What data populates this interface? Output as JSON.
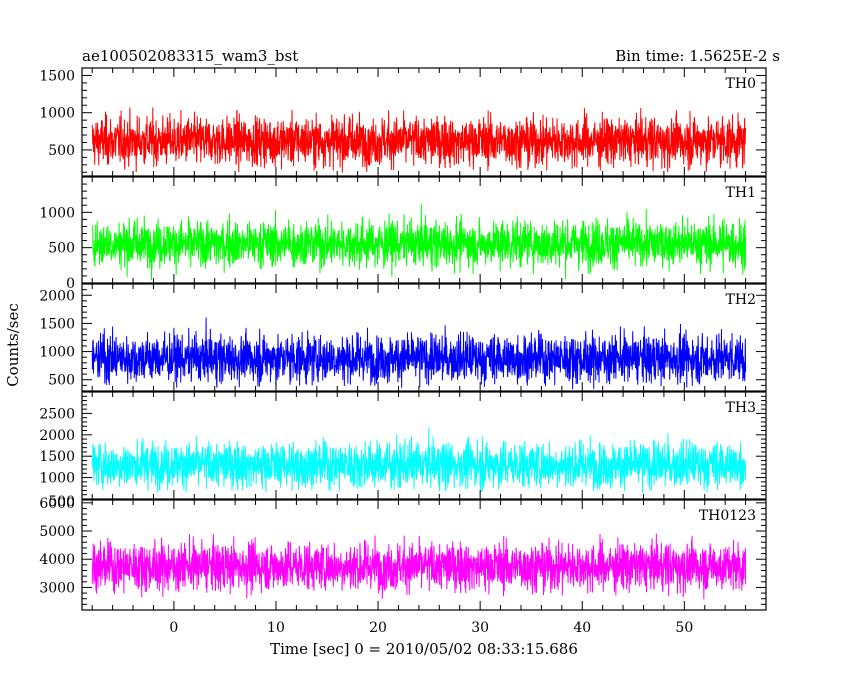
{
  "chart_data": {
    "type": "line",
    "title_left": "ae100502083315_wam3_bst",
    "title_right": "Bin time: 1.5625E-2 s",
    "xlabel": "Time [sec] 0 = 2010/05/02 08:33:15.686",
    "ylabel": "Counts/sec",
    "xlim": [
      -9,
      58
    ],
    "data_xrange": [
      -8,
      56
    ],
    "x_ticks": [
      0,
      10,
      20,
      30,
      40,
      50
    ],
    "x_minor_step": 2,
    "grid": false,
    "panels": [
      {
        "name": "TH0",
        "color": "#ff0000",
        "ylim": [
          150,
          1600
        ],
        "y_ticks": [
          500,
          1000,
          1500
        ],
        "y_minor_step": 100,
        "mean": 620,
        "spread": 230,
        "clip_low": 180,
        "clip_high": 1600
      },
      {
        "name": "TH1",
        "color": "#00ff00",
        "ylim": [
          0,
          1500
        ],
        "y_ticks": [
          0,
          500,
          1000
        ],
        "y_minor_step": 100,
        "mean": 560,
        "spread": 230,
        "clip_low": 40,
        "clip_high": 1500
      },
      {
        "name": "TH2",
        "color": "#0000ff",
        "ylim": [
          300,
          2200
        ],
        "y_ticks": [
          500,
          1000,
          1500,
          2000
        ],
        "y_minor_step": 100,
        "mean": 880,
        "spread": 300,
        "clip_low": 330,
        "clip_high": 2200
      },
      {
        "name": "TH3",
        "color": "#00ffff",
        "ylim": [
          500,
          3000
        ],
        "y_ticks": [
          1000,
          1500,
          2000,
          2500
        ],
        "y_minor_step": 100,
        "mean": 1300,
        "spread": 380,
        "clip_low": 650,
        "clip_high": 3000
      },
      {
        "name": "TH0123",
        "color": "#ff00ff",
        "ylim": [
          2200,
          6100
        ],
        "y_ticks": [
          3000,
          4000,
          5000,
          6000
        ],
        "y_minor_step": 200,
        "mean": 3750,
        "spread": 600,
        "clip_low": 2350,
        "clip_high": 6100
      }
    ]
  },
  "labels": {
    "ytick_text": {
      "p0": [
        "500",
        "1000",
        "1500"
      ],
      "p1": [
        "0",
        "500",
        "1000"
      ],
      "p2": [
        "500",
        "1000",
        "1500",
        "2000"
      ],
      "p3": [
        "1000",
        "1500",
        "2000",
        "2500"
      ],
      "p4": [
        "3000",
        "4000",
        "5000",
        "6000"
      ]
    },
    "xtick_text": [
      "0",
      "10",
      "20",
      "30",
      "40",
      "50"
    ],
    "th3_partial_label": "500"
  }
}
